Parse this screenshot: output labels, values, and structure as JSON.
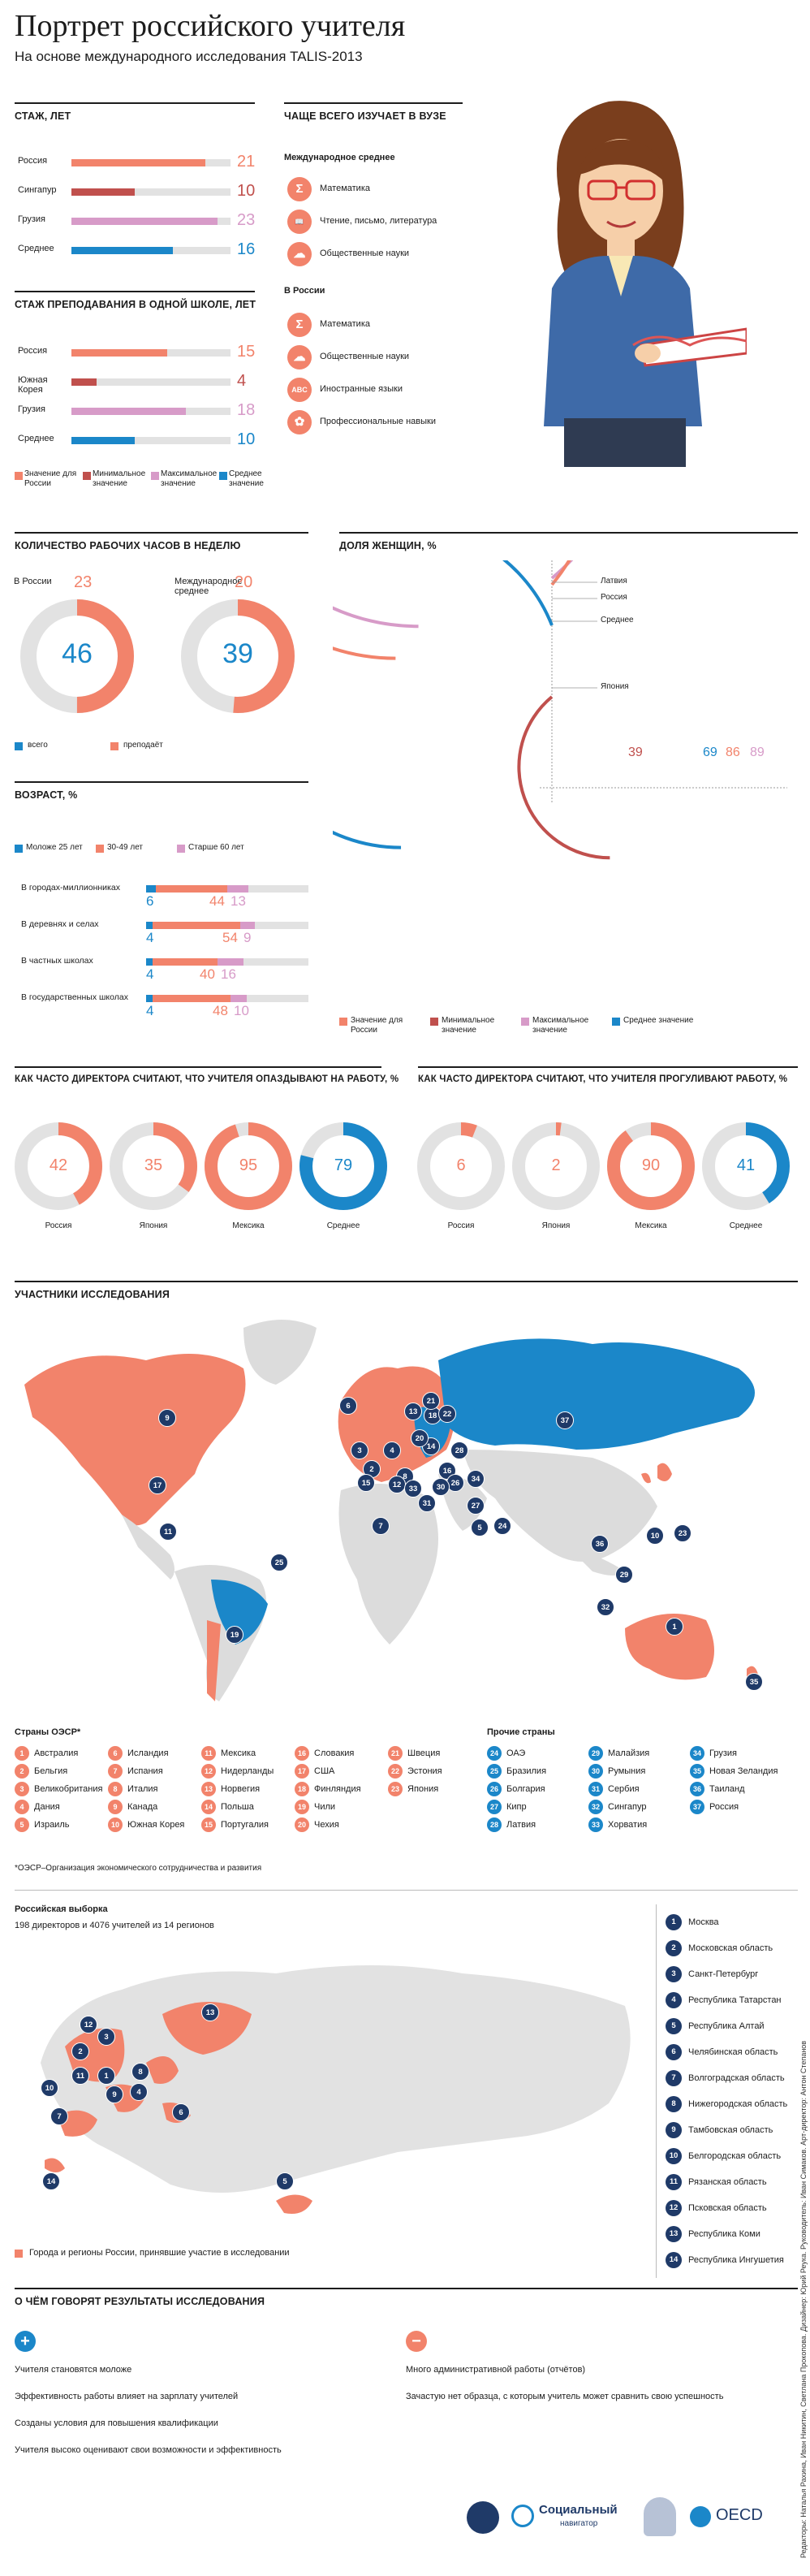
{
  "header": {
    "title": "Портрет российского учителя",
    "subtitle": "На основе международного исследования TALIS-2013"
  },
  "colors": {
    "russia": "#f2836b",
    "min": "#c0504d",
    "max": "#d79bc8",
    "avg": "#1b87c9",
    "navy": "#1f3a68"
  },
  "experience": {
    "title": "Стаж, лет",
    "max_value": 25,
    "rows": [
      {
        "label": "Россия",
        "value": 21,
        "color_key": "russia"
      },
      {
        "label": "Сингапур",
        "value": 10,
        "color_key": "min"
      },
      {
        "label": "Грузия",
        "value": 23,
        "color_key": "max"
      },
      {
        "label": "Среднее",
        "value": 16,
        "color_key": "avg"
      }
    ]
  },
  "school_experience": {
    "title": "Стаж преподавания в одной школе, лет",
    "max_value": 25,
    "rows": [
      {
        "label": "Россия",
        "value": 15,
        "color_key": "russia"
      },
      {
        "label": "Южная Корея",
        "value": 4,
        "color_key": "min"
      },
      {
        "label": "Грузия",
        "value": 18,
        "color_key": "max"
      },
      {
        "label": "Среднее",
        "value": 10,
        "color_key": "avg"
      }
    ]
  },
  "legend_main": [
    {
      "label": "Значение для России",
      "color_key": "russia"
    },
    {
      "label": "Минимальное значение",
      "color_key": "min"
    },
    {
      "label": "Максимальное значение",
      "color_key": "max"
    },
    {
      "label": "Среднее значение",
      "color_key": "avg"
    }
  ],
  "study": {
    "title": "Чаще всего изучает в вузе",
    "intl_title": "Международное среднее",
    "intl_items": [
      {
        "label": "Математика",
        "icon": "sigma-icon",
        "glyph": "Σ"
      },
      {
        "label": "Чтение, письмо, литература",
        "icon": "book-icon",
        "glyph": "📖"
      },
      {
        "label": "Общественные науки",
        "icon": "social-icon",
        "glyph": "☁"
      }
    ],
    "ru_title": "В России",
    "ru_items": [
      {
        "label": "Математика",
        "icon": "sigma-icon",
        "glyph": "Σ"
      },
      {
        "label": "Общественные науки",
        "icon": "social-icon",
        "glyph": "☁"
      },
      {
        "label": "Иностранные языки",
        "icon": "abc-icon",
        "glyph": "ABC"
      },
      {
        "label": "Профессиональные навыки",
        "icon": "gear-icon",
        "glyph": "✿"
      }
    ]
  },
  "hours": {
    "title": "Количество рабочих часов в неделю",
    "items": [
      {
        "label": "В России",
        "total": 46,
        "teaching": 23
      },
      {
        "label": "Международное среднее",
        "total": 39,
        "teaching": 20
      }
    ],
    "legend": [
      {
        "label": "всего",
        "color_key": "avg"
      },
      {
        "label": "преподаёт",
        "color_key": "russia"
      }
    ]
  },
  "women": {
    "title": "Доля женщин, %",
    "rings": [
      {
        "label": "Латвия",
        "value": 89,
        "color_key": "max"
      },
      {
        "label": "Россия",
        "value": 86,
        "color_key": "russia"
      },
      {
        "label": "Среднее",
        "value": 69,
        "color_key": "avg"
      },
      {
        "label": "Япония",
        "value": 39,
        "color_key": "min"
      }
    ]
  },
  "age": {
    "title": "Возраст, %",
    "legend": [
      {
        "label": "Моложе 25 лет",
        "color_key": "avg"
      },
      {
        "label": "30-49 лет",
        "color_key": "russia"
      },
      {
        "label": "Старше 60 лет",
        "color_key": "max"
      }
    ],
    "rows": [
      {
        "label": "В городах-миллионниках",
        "young": 6,
        "middle": 44,
        "old": 13
      },
      {
        "label": "В деревнях и селах",
        "young": 4,
        "middle": 54,
        "old": 9
      },
      {
        "label": "В частных школах",
        "young": 4,
        "middle": 40,
        "old": 16
      },
      {
        "label": "В государственных школах",
        "young": 4,
        "middle": 48,
        "old": 10
      }
    ]
  },
  "late": {
    "title": "Как часто директора считают, что учителя опаздывают на работу, %",
    "items": [
      {
        "label": "Россия",
        "value": 42,
        "color_key": "russia"
      },
      {
        "label": "Япония",
        "value": 35,
        "color_key": "russia"
      },
      {
        "label": "Мексика",
        "value": 95,
        "color_key": "russia"
      },
      {
        "label": "Среднее",
        "value": 79,
        "color_key": "avg"
      }
    ]
  },
  "absent": {
    "title": "Как часто директора считают, что учителя прогуливают работу, %",
    "items": [
      {
        "label": "Россия",
        "value": 6,
        "color_key": "russia"
      },
      {
        "label": "Япония",
        "value": 2,
        "color_key": "russia"
      },
      {
        "label": "Мексика",
        "value": 90,
        "color_key": "russia"
      },
      {
        "label": "Среднее",
        "value": 41,
        "color_key": "avg"
      }
    ]
  },
  "participants": {
    "title": "Участники исследования",
    "oecd_title": "Страны ОЭСР*",
    "oecd": [
      {
        "n": "1",
        "name": "Австралия"
      },
      {
        "n": "2",
        "name": "Бельгия"
      },
      {
        "n": "3",
        "name": "Великобритания"
      },
      {
        "n": "4",
        "name": "Дания"
      },
      {
        "n": "5",
        "name": "Израиль"
      },
      {
        "n": "6",
        "name": "Исландия"
      },
      {
        "n": "7",
        "name": "Испания"
      },
      {
        "n": "8",
        "name": "Италия"
      },
      {
        "n": "9",
        "name": "Канада"
      },
      {
        "n": "10",
        "name": "Южная Корея"
      },
      {
        "n": "11",
        "name": "Мексика"
      },
      {
        "n": "12",
        "name": "Нидерланды"
      },
      {
        "n": "13",
        "name": "Норвегия"
      },
      {
        "n": "14",
        "name": "Польша"
      },
      {
        "n": "15",
        "name": "Португалия"
      },
      {
        "n": "16",
        "name": "Словакия"
      },
      {
        "n": "17",
        "name": "США"
      },
      {
        "n": "18",
        "name": "Финляндия"
      },
      {
        "n": "19",
        "name": "Чили"
      },
      {
        "n": "20",
        "name": "Чехия"
      },
      {
        "n": "21",
        "name": "Швеция"
      },
      {
        "n": "22",
        "name": "Эстония"
      },
      {
        "n": "23",
        "name": "Япония"
      }
    ],
    "other_title": "Прочие страны",
    "other": [
      {
        "n": "24",
        "name": "ОАЭ"
      },
      {
        "n": "25",
        "name": "Бразилия"
      },
      {
        "n": "26",
        "name": "Болгария"
      },
      {
        "n": "27",
        "name": "Кипр"
      },
      {
        "n": "28",
        "name": "Латвия"
      },
      {
        "n": "29",
        "name": "Малайзия"
      },
      {
        "n": "30",
        "name": "Румыния"
      },
      {
        "n": "31",
        "name": "Сербия"
      },
      {
        "n": "32",
        "name": "Сингапур"
      },
      {
        "n": "33",
        "name": "Хорватия"
      },
      {
        "n": "34",
        "name": "Грузия"
      },
      {
        "n": "35",
        "name": "Новая Зеландия"
      },
      {
        "n": "36",
        "name": "Таиланд"
      },
      {
        "n": "37",
        "name": "Россия"
      }
    ],
    "footnote": "*ОЭСР–Организация экономического сотрудничества и развития"
  },
  "russia_sample": {
    "title": "Российская выборка",
    "subtitle": "198 директоров и 4076 учителей из 14 регионов",
    "legend": "Города и регионы России, принявшие участие в исследовании",
    "regions": [
      {
        "n": "1",
        "name": "Москва"
      },
      {
        "n": "2",
        "name": "Московская область"
      },
      {
        "n": "3",
        "name": "Санкт-Петербург"
      },
      {
        "n": "4",
        "name": "Республика Татарстан"
      },
      {
        "n": "5",
        "name": "Республика Алтай"
      },
      {
        "n": "6",
        "name": "Челябинская область"
      },
      {
        "n": "7",
        "name": "Волгоградская область"
      },
      {
        "n": "8",
        "name": "Нижегородская область"
      },
      {
        "n": "9",
        "name": "Тамбовская область"
      },
      {
        "n": "10",
        "name": "Белгородская область"
      },
      {
        "n": "11",
        "name": "Рязанская область"
      },
      {
        "n": "12",
        "name": "Псковская область"
      },
      {
        "n": "13",
        "name": "Республика Коми"
      },
      {
        "n": "14",
        "name": "Республика Ингушетия"
      }
    ]
  },
  "results": {
    "title": "О чём говорят результаты исследования",
    "plus": "+",
    "minus": "−",
    "positive": [
      "Учителя становятся моложе",
      "Эффективность работы влияет на зарплату учителей",
      "Созданы условия для повышения квалификации",
      "Учителя высоко оценивают свои возможности и эффективность"
    ],
    "negative": [
      "Много административной работы (отчётов)",
      "Зачастую нет образца, с которым учитель может сравнить свою успешность"
    ]
  },
  "credits": "Редакторы: Наталья Рахина, Иван Никитин, Светлана Прокопова. Дизайнер: Юрий Реука. Руководитель: Иван Симаков. Арт-директор: Антон Степанов",
  "logos": {
    "social": "Социальный",
    "social_sub": "навигатор",
    "oecd": "OECD"
  }
}
